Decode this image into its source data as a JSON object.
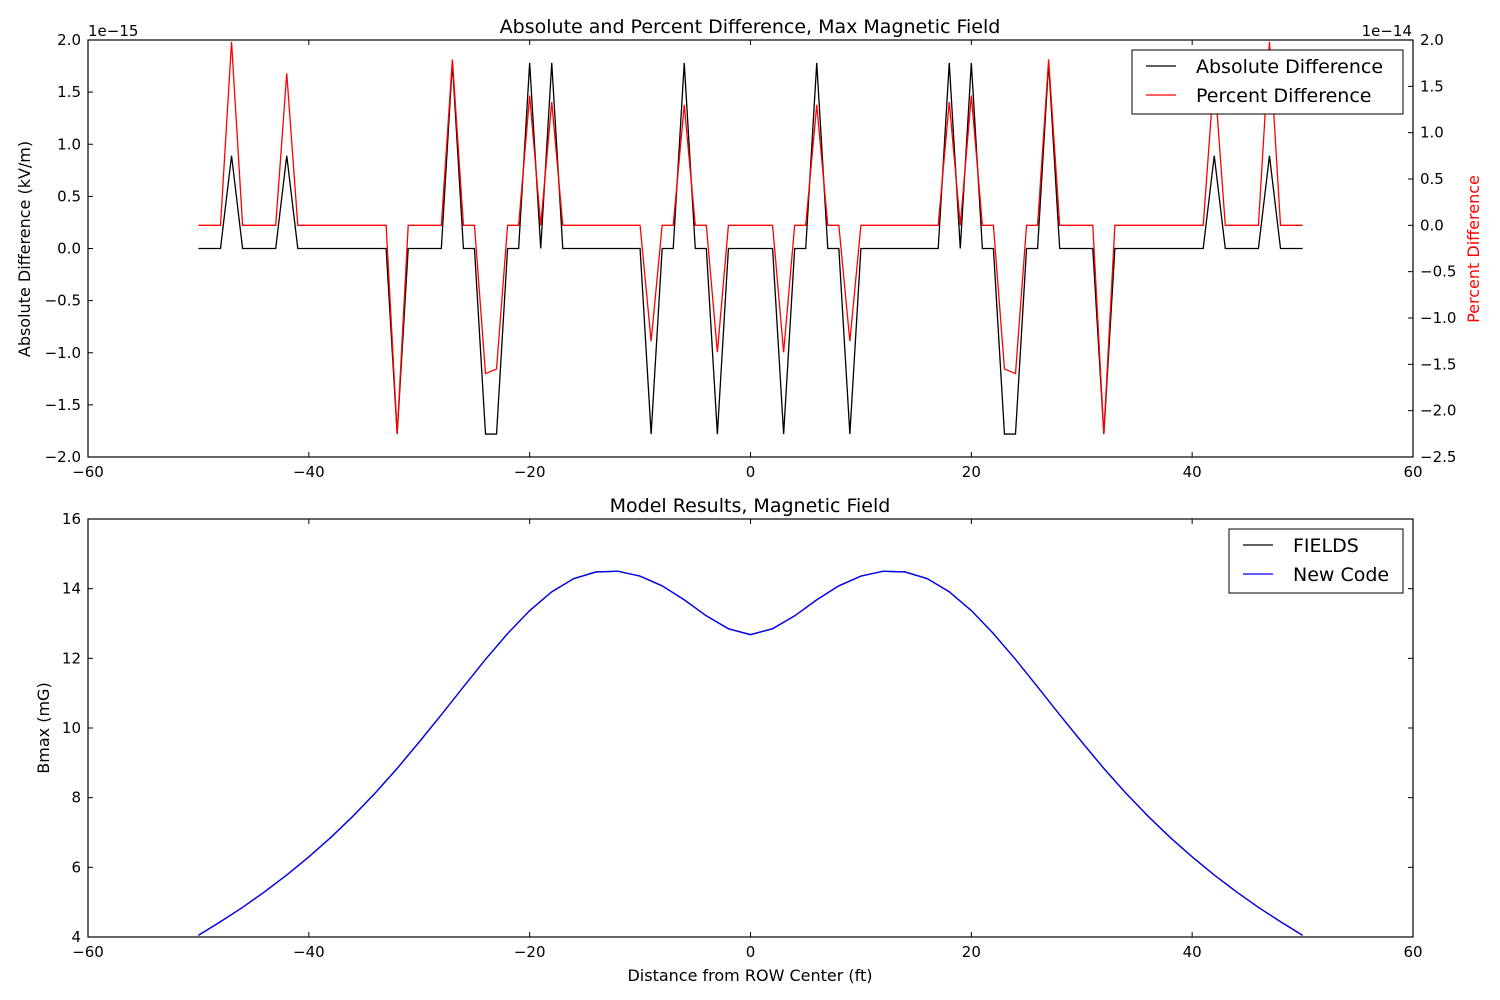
{
  "chart_data": [
    {
      "type": "line",
      "title": "Absolute and Percent Difference, Max Magnetic Field",
      "xlabel": "",
      "ylabel": "Absolute Difference (kV/m)",
      "y2label": "Percent Difference",
      "xlim": [
        -60,
        60
      ],
      "ylim": [
        -2.0,
        2.0
      ],
      "y2lim": [
        -2.5,
        2.0
      ],
      "y_offset_label": "1e−15",
      "y2_offset_label": "1e−14",
      "x_ticks": [
        -60,
        -40,
        -20,
        0,
        20,
        40,
        60
      ],
      "x_tick_labels": [
        "−60",
        "−40",
        "−20",
        "0",
        "20",
        "40",
        "60"
      ],
      "y_ticks": [
        -2.0,
        -1.5,
        -1.0,
        -0.5,
        0.0,
        0.5,
        1.0,
        1.5,
        2.0
      ],
      "y_tick_labels": [
        "−2.0",
        "−1.5",
        "−1.0",
        "−0.5",
        "0.0",
        "0.5",
        "1.0",
        "1.5",
        "2.0"
      ],
      "y2_ticks": [
        -2.5,
        -2.0,
        -1.5,
        -1.0,
        -0.5,
        0.0,
        0.5,
        1.0,
        1.5,
        2.0
      ],
      "y2_tick_labels": [
        "−2.5",
        "−2.0",
        "−1.5",
        "−1.0",
        "−0.5",
        "0.0",
        "0.5",
        "1.0",
        "1.5",
        "2.0"
      ],
      "grid": false,
      "legend": "top-right",
      "series": [
        {
          "name": "Absolute Difference",
          "color": "#000000",
          "axis": "left",
          "x": [
            -50,
            -49,
            -48,
            -47,
            -46,
            -45,
            -44,
            -43,
            -42,
            -41,
            -40,
            -39,
            -38,
            -37,
            -36,
            -35,
            -34,
            -33,
            -32,
            -31,
            -30,
            -29,
            -28,
            -27,
            -26,
            -25,
            -24,
            -23,
            -22,
            -21,
            -20,
            -19,
            -18,
            -17,
            -16,
            -15,
            -14,
            -13,
            -12,
            -11,
            -10,
            -9,
            -8,
            -7,
            -6,
            -5,
            -4,
            -3,
            -2,
            -1,
            0,
            1,
            2,
            3,
            4,
            5,
            6,
            7,
            8,
            9,
            10,
            11,
            12,
            13,
            14,
            15,
            16,
            17,
            18,
            19,
            20,
            21,
            22,
            23,
            24,
            25,
            26,
            27,
            28,
            29,
            30,
            31,
            32,
            33,
            34,
            35,
            36,
            37,
            38,
            39,
            40,
            41,
            42,
            43,
            44,
            45,
            46,
            47,
            48,
            49,
            50
          ],
          "y": [
            0,
            0,
            0,
            0.89,
            0,
            0,
            0,
            0,
            0.89,
            0,
            0,
            0,
            0,
            0,
            0,
            0,
            0,
            0,
            -1.78,
            0,
            0,
            0,
            0,
            1.78,
            0,
            0,
            -1.78,
            -1.78,
            0,
            0,
            1.78,
            0,
            1.78,
            0,
            0,
            0,
            0,
            0,
            0,
            0,
            0,
            -1.78,
            0,
            0,
            1.78,
            0,
            0,
            -1.78,
            0,
            0,
            0,
            0,
            0,
            -1.78,
            0,
            0,
            1.78,
            0,
            0,
            -1.78,
            0,
            0,
            0,
            0,
            0,
            0,
            0,
            0,
            1.78,
            0,
            1.78,
            0,
            0,
            -1.78,
            -1.78,
            0,
            0,
            1.78,
            0,
            0,
            0,
            0,
            -1.78,
            0,
            0,
            0,
            0,
            0,
            0,
            0,
            0,
            0,
            0.89,
            0,
            0,
            0,
            0,
            0.89,
            0,
            0,
            0
          ]
        },
        {
          "name": "Percent Difference",
          "color": "#ff0000",
          "axis": "right",
          "x": [
            -50,
            -49,
            -48,
            -47,
            -46,
            -45,
            -44,
            -43,
            -42,
            -41,
            -40,
            -39,
            -38,
            -37,
            -36,
            -35,
            -34,
            -33,
            -32,
            -31,
            -30,
            -29,
            -28,
            -27,
            -26,
            -25,
            -24,
            -23,
            -22,
            -21,
            -20,
            -19,
            -18,
            -17,
            -16,
            -15,
            -14,
            -13,
            -12,
            -11,
            -10,
            -9,
            -8,
            -7,
            -6,
            -5,
            -4,
            -3,
            -2,
            -1,
            0,
            1,
            2,
            3,
            4,
            5,
            6,
            7,
            8,
            9,
            10,
            11,
            12,
            13,
            14,
            15,
            16,
            17,
            18,
            19,
            20,
            21,
            22,
            23,
            24,
            25,
            26,
            27,
            28,
            29,
            30,
            31,
            32,
            33,
            34,
            35,
            36,
            37,
            38,
            39,
            40,
            41,
            42,
            43,
            44,
            45,
            46,
            47,
            48,
            49,
            50
          ],
          "y": [
            0,
            0,
            0,
            1.98,
            0,
            0,
            0,
            0,
            1.64,
            0,
            0,
            0,
            0,
            0,
            0,
            0,
            0,
            0,
            -2.25,
            0,
            0,
            0,
            0,
            1.79,
            0,
            0,
            -1.6,
            -1.55,
            0,
            0,
            1.4,
            0,
            1.33,
            0,
            0,
            0,
            0,
            0,
            0,
            0,
            0,
            -1.25,
            0,
            0,
            1.3,
            0,
            0,
            -1.37,
            0,
            0,
            0,
            0,
            0,
            -1.37,
            0,
            0,
            1.3,
            0,
            0,
            -1.25,
            0,
            0,
            0,
            0,
            0,
            0,
            0,
            0,
            1.33,
            0,
            1.4,
            0,
            0,
            -1.55,
            -1.6,
            0,
            0,
            1.79,
            0,
            0,
            0,
            0,
            -2.25,
            0,
            0,
            0,
            0,
            0,
            0,
            0,
            0,
            0,
            1.64,
            0,
            0,
            0,
            0,
            1.98,
            0,
            0,
            0
          ]
        }
      ]
    },
    {
      "type": "line",
      "title": "Model Results, Magnetic Field",
      "xlabel": "Distance from ROW Center (ft)",
      "ylabel": "Bmax (mG)",
      "xlim": [
        -60,
        60
      ],
      "ylim": [
        4,
        16
      ],
      "x_ticks": [
        -60,
        -40,
        -20,
        0,
        20,
        40,
        60
      ],
      "x_tick_labels": [
        "−60",
        "−40",
        "−20",
        "0",
        "20",
        "40",
        "60"
      ],
      "y_ticks": [
        4,
        6,
        8,
        10,
        12,
        14,
        16
      ],
      "y_tick_labels": [
        "4",
        "6",
        "8",
        "10",
        "12",
        "14",
        "16"
      ],
      "grid": false,
      "legend": "top-right",
      "series": [
        {
          "name": "FIELDS",
          "color": "#000000",
          "x": [
            -50,
            -48,
            -46,
            -44,
            -42,
            -40,
            -38,
            -36,
            -34,
            -32,
            -30,
            -28,
            -26,
            -24,
            -22,
            -20,
            -18,
            -16,
            -14,
            -12,
            -10,
            -8,
            -6,
            -4,
            -2,
            0,
            2,
            4,
            6,
            8,
            10,
            12,
            14,
            16,
            18,
            20,
            22,
            24,
            26,
            28,
            30,
            32,
            34,
            36,
            38,
            40,
            42,
            44,
            46,
            48,
            50
          ],
          "y": [
            4.05,
            4.44,
            4.85,
            5.3,
            5.78,
            6.3,
            6.86,
            7.47,
            8.13,
            8.84,
            9.6,
            10.38,
            11.18,
            11.97,
            12.71,
            13.37,
            13.91,
            14.29,
            14.48,
            14.5,
            14.36,
            14.08,
            13.68,
            13.22,
            12.85,
            12.68,
            12.85,
            13.22,
            13.68,
            14.08,
            14.36,
            14.5,
            14.48,
            14.29,
            13.91,
            13.37,
            12.71,
            11.97,
            11.18,
            10.38,
            9.6,
            8.84,
            8.13,
            7.47,
            6.86,
            6.3,
            5.78,
            5.3,
            4.85,
            4.44,
            4.05
          ]
        },
        {
          "name": "New Code",
          "color": "#0000ff",
          "x": [
            -50,
            -48,
            -46,
            -44,
            -42,
            -40,
            -38,
            -36,
            -34,
            -32,
            -30,
            -28,
            -26,
            -24,
            -22,
            -20,
            -18,
            -16,
            -14,
            -12,
            -10,
            -8,
            -6,
            -4,
            -2,
            0,
            2,
            4,
            6,
            8,
            10,
            12,
            14,
            16,
            18,
            20,
            22,
            24,
            26,
            28,
            30,
            32,
            34,
            36,
            38,
            40,
            42,
            44,
            46,
            48,
            50
          ],
          "y": [
            4.05,
            4.44,
            4.85,
            5.3,
            5.78,
            6.3,
            6.86,
            7.47,
            8.13,
            8.84,
            9.6,
            10.38,
            11.18,
            11.97,
            12.71,
            13.37,
            13.91,
            14.29,
            14.48,
            14.5,
            14.36,
            14.08,
            13.68,
            13.22,
            12.85,
            12.68,
            12.85,
            13.22,
            13.68,
            14.08,
            14.36,
            14.5,
            14.48,
            14.29,
            13.91,
            13.37,
            12.71,
            11.97,
            11.18,
            10.38,
            9.6,
            8.84,
            8.13,
            7.47,
            6.86,
            6.3,
            5.78,
            5.3,
            4.85,
            4.44,
            4.05
          ]
        }
      ]
    }
  ]
}
